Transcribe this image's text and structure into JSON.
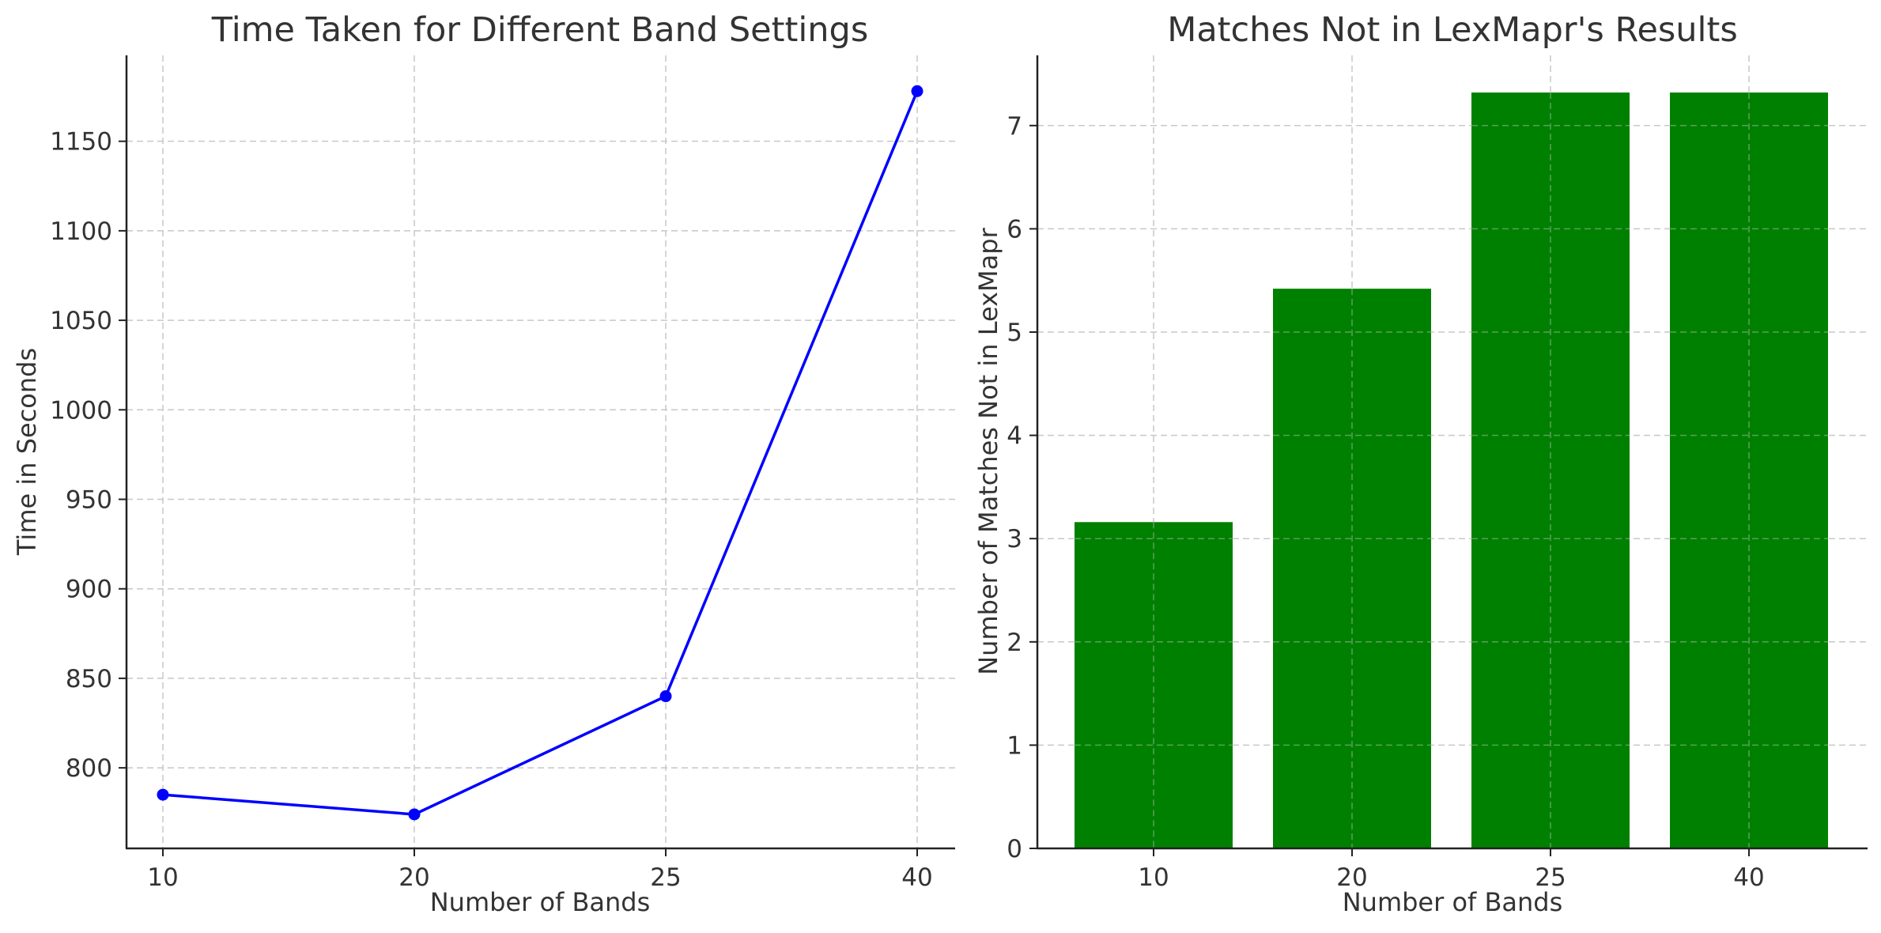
{
  "chart_data": [
    {
      "type": "line",
      "title": "Time Taken for Different Band Settings",
      "xlabel": "Number of Bands",
      "ylabel": "Time in Seconds",
      "categories": [
        "10",
        "20",
        "25",
        "40"
      ],
      "values": [
        785,
        774,
        840,
        1178
      ],
      "yticks": [
        800,
        850,
        900,
        950,
        1000,
        1050,
        1100,
        1150
      ],
      "ylim": [
        755,
        1198
      ],
      "grid": true,
      "marker": "circle",
      "colors": {
        "series": "#0000ff"
      }
    },
    {
      "type": "bar",
      "title": "Matches Not in LexMapr's Results",
      "xlabel": "Number of Bands",
      "ylabel": "Number of Matches Not in LexMapr",
      "categories": [
        "10",
        "20",
        "25",
        "40"
      ],
      "values": [
        3.16,
        5.42,
        7.32,
        7.32
      ],
      "yticks": [
        0,
        1,
        2,
        3,
        4,
        5,
        6,
        7
      ],
      "ylim": [
        0,
        7.68
      ],
      "grid": true,
      "colors": {
        "bars": "#008000"
      }
    }
  ]
}
